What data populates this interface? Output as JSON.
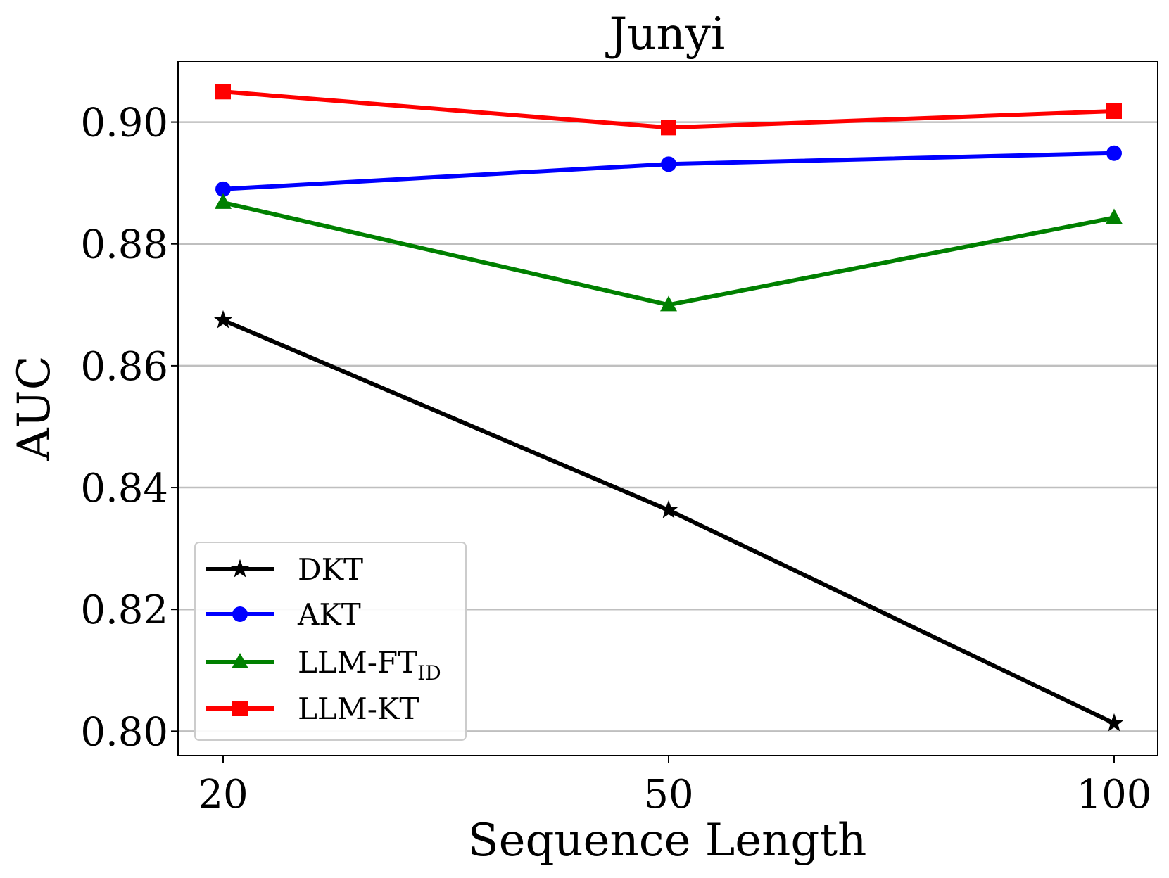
{
  "chart_data": {
    "type": "line",
    "title": "Junyi",
    "xlabel": "Sequence Length",
    "ylabel": "AUC",
    "categories": [
      "20",
      "50",
      "100"
    ],
    "yticks": [
      "0.80",
      "0.82",
      "0.84",
      "0.86",
      "0.88",
      "0.90"
    ],
    "ytick_values": [
      0.8,
      0.82,
      0.84,
      0.86,
      0.88,
      0.9
    ],
    "ylim": [
      0.796,
      0.91
    ],
    "grid": "horizontal",
    "legend_position": "lower-left",
    "series": [
      {
        "name": "DKT",
        "label_main": "DKT",
        "label_sub": "",
        "color": "#000000",
        "marker": "star",
        "values": [
          0.8675,
          0.8363,
          0.8013
        ]
      },
      {
        "name": "AKT",
        "label_main": "AKT",
        "label_sub": "",
        "color": "#0000ff",
        "marker": "circle",
        "values": [
          0.889,
          0.8931,
          0.8949
        ]
      },
      {
        "name": "LLM-FT_ID",
        "label_main": "LLM-FT",
        "label_sub": "ID",
        "color": "#008000",
        "marker": "triangle",
        "values": [
          0.8868,
          0.87,
          0.8843
        ]
      },
      {
        "name": "LLM-KT",
        "label_main": "LLM-KT",
        "label_sub": "",
        "color": "#ff0000",
        "marker": "square",
        "values": [
          0.905,
          0.8991,
          0.9018
        ]
      }
    ]
  }
}
